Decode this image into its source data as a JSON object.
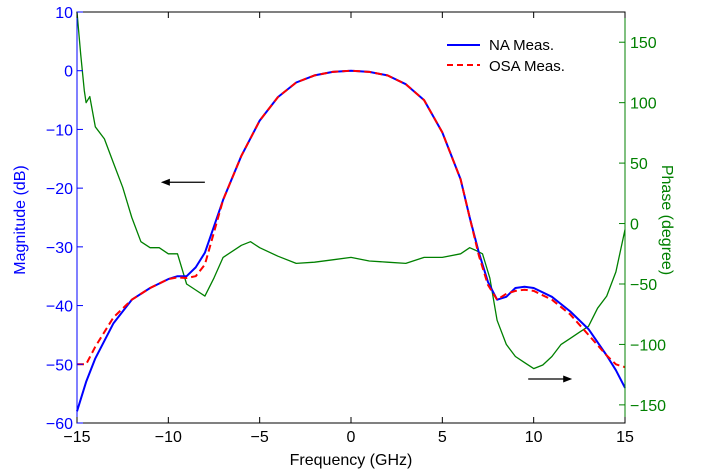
{
  "chart_data": {
    "type": "line",
    "xlabel": "Frequency (GHz)",
    "ylabel_left": "Magnitude (dB)",
    "ylabel_right": "Phase (degree)",
    "xlim": [
      -15,
      15
    ],
    "ylim_left": [
      -60,
      10
    ],
    "ylim_right": [
      -165,
      175
    ],
    "x_ticks": [
      "−15",
      "−10",
      "−5",
      "0",
      "5",
      "10",
      "15"
    ],
    "x_tick_values": [
      -15,
      -10,
      -5,
      0,
      5,
      10,
      15
    ],
    "y_left_ticks": [
      "−60",
      "−50",
      "−40",
      "−30",
      "−20",
      "−10",
      "0",
      "10"
    ],
    "y_left_tick_values": [
      -60,
      -50,
      -40,
      -30,
      -20,
      -10,
      0,
      10
    ],
    "y_right_ticks": [
      "−150",
      "−100",
      "−50",
      "0",
      "50",
      "100",
      "150"
    ],
    "y_right_tick_values": [
      -150,
      -100,
      -50,
      0,
      50,
      100,
      150
    ],
    "legend_position": "top-right",
    "grid": false,
    "colors": {
      "left_axis": "#0000ff",
      "right_axis": "#008000",
      "na": "#0000ff",
      "osa": "#ff0000",
      "phase": "#008000"
    },
    "series": [
      {
        "name": "NA Meas.",
        "axis": "left",
        "style": "solid",
        "x": [
          -15,
          -14.5,
          -14,
          -13,
          -12,
          -11,
          -10,
          -9.5,
          -9,
          -8.5,
          -8,
          -7,
          -6,
          -5,
          -4,
          -3,
          -2,
          -1,
          0,
          1,
          2,
          3,
          4,
          5,
          6,
          6.5,
          7,
          7.5,
          8,
          8.5,
          9,
          9.5,
          10,
          11,
          12,
          13,
          14,
          14.5,
          15
        ],
        "y": [
          -58,
          -53,
          -49,
          -43,
          -39,
          -37,
          -35.5,
          -35,
          -35,
          -33.5,
          -31,
          -22,
          -14.5,
          -8.5,
          -4.5,
          -2,
          -0.8,
          -0.2,
          0,
          -0.2,
          -0.8,
          -2.3,
          -5,
          -10.5,
          -18.5,
          -25,
          -31,
          -36,
          -39,
          -38.5,
          -37,
          -36.8,
          -37,
          -38.5,
          -41,
          -44,
          -48.5,
          -51,
          -54
        ]
      },
      {
        "name": "OSA Meas.",
        "axis": "left",
        "style": "dashed",
        "x": [
          -15,
          -14.5,
          -14,
          -13,
          -12,
          -11,
          -10,
          -9.5,
          -9,
          -8.5,
          -8,
          -7,
          -6,
          -5,
          -4,
          -3,
          -2,
          -1,
          0,
          1,
          2,
          3,
          4,
          5,
          6,
          6.5,
          7,
          7.5,
          8,
          8.5,
          9,
          9.5,
          10,
          11,
          12,
          13,
          14,
          14.5,
          15
        ],
        "y": [
          -50,
          -50,
          -47,
          -42,
          -39,
          -37,
          -35.5,
          -35.2,
          -35.3,
          -35,
          -33,
          -22,
          -14.5,
          -8.5,
          -4.5,
          -2,
          -0.8,
          -0.2,
          0,
          -0.2,
          -0.8,
          -2.3,
          -5,
          -10.5,
          -18.5,
          -25,
          -31.5,
          -36.5,
          -39,
          -38,
          -37.5,
          -37.3,
          -37.5,
          -39,
          -41.5,
          -45,
          -48.5,
          -50,
          -50.5
        ]
      },
      {
        "name": "",
        "axis": "right",
        "style": "solid",
        "x": [
          -15,
          -14.8,
          -14.6,
          -14.5,
          -14.3,
          -14,
          -13.5,
          -13,
          -12.5,
          -12,
          -11.5,
          -11,
          -10.5,
          -10,
          -9.5,
          -9,
          -8.5,
          -8,
          -7.5,
          -7,
          -6,
          -5.5,
          -5,
          -4,
          -3,
          -2,
          -1,
          0,
          1,
          2,
          3,
          4,
          5,
          6,
          6.5,
          6.8,
          7.2,
          7.6,
          8,
          8.5,
          9,
          9.5,
          10,
          10.5,
          11,
          11.5,
          12,
          12.5,
          13,
          13.5,
          14,
          14.5,
          15
        ],
        "y": [
          175,
          140,
          110,
          100,
          105,
          80,
          70,
          50,
          30,
          5,
          -15,
          -20,
          -20,
          -25,
          -25,
          -50,
          -55,
          -60,
          -45,
          -28,
          -18,
          -15,
          -20,
          -27,
          -33,
          -32,
          -30,
          -28,
          -31,
          -32,
          -33,
          -28,
          -28,
          -25,
          -20,
          -22,
          -25,
          -45,
          -80,
          -100,
          -110,
          -115,
          -120,
          -117,
          -110,
          -100,
          -95,
          -90,
          -85,
          -70,
          -60,
          -40,
          -5
        ]
      }
    ],
    "annotations": [
      {
        "text": "←",
        "points_to": "left axis",
        "x": -8,
        "y_left": -19
      },
      {
        "text": "→",
        "points_to": "right axis",
        "x": 12,
        "y_left": -52.5
      }
    ]
  }
}
